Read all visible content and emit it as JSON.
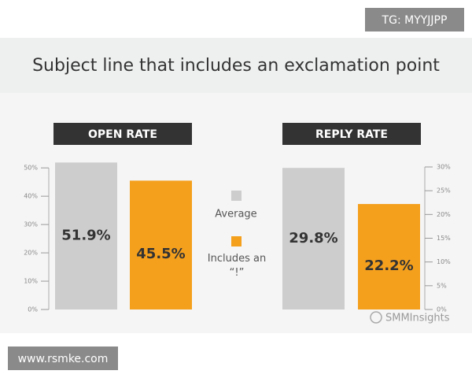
{
  "title": "Subject line that includes an exclamation point",
  "tag": "TG: MYYJJPP",
  "footer": "www.rsmke.com",
  "source": "SMMInsights",
  "legend": [
    {
      "label": "Average",
      "color": "#cdcdcd"
    },
    {
      "label": "Includes an “!”",
      "color": "#f5a01d"
    }
  ],
  "chart_data": [
    {
      "type": "bar",
      "title": "OPEN RATE",
      "axis_side": "left",
      "values": [
        51.9,
        45.5
      ],
      "value_labels": [
        "51.9%",
        "45.5%"
      ],
      "ylim": [
        0,
        52
      ],
      "yticks": [
        {
          "value": 0,
          "label": "0%"
        },
        {
          "value": 10,
          "label": "10%"
        },
        {
          "value": 20,
          "label": "20%"
        },
        {
          "value": 30,
          "label": "30%"
        },
        {
          "value": 40,
          "label": "40%"
        },
        {
          "value": 50,
          "label": "50%"
        }
      ]
    },
    {
      "type": "bar",
      "title": "REPLY RATE",
      "axis_side": "right",
      "values": [
        29.8,
        22.2
      ],
      "value_labels": [
        "29.8%",
        "22.2%"
      ],
      "ylim": [
        0,
        30
      ],
      "yticks": [
        {
          "value": 0,
          "label": "0%"
        },
        {
          "value": 5,
          "label": "5%"
        },
        {
          "value": 10,
          "label": "10%"
        },
        {
          "value": 15,
          "label": "15%"
        },
        {
          "value": 20,
          "label": "20%"
        },
        {
          "value": 25,
          "label": "25%"
        },
        {
          "value": 30,
          "label": "30%"
        }
      ]
    }
  ]
}
